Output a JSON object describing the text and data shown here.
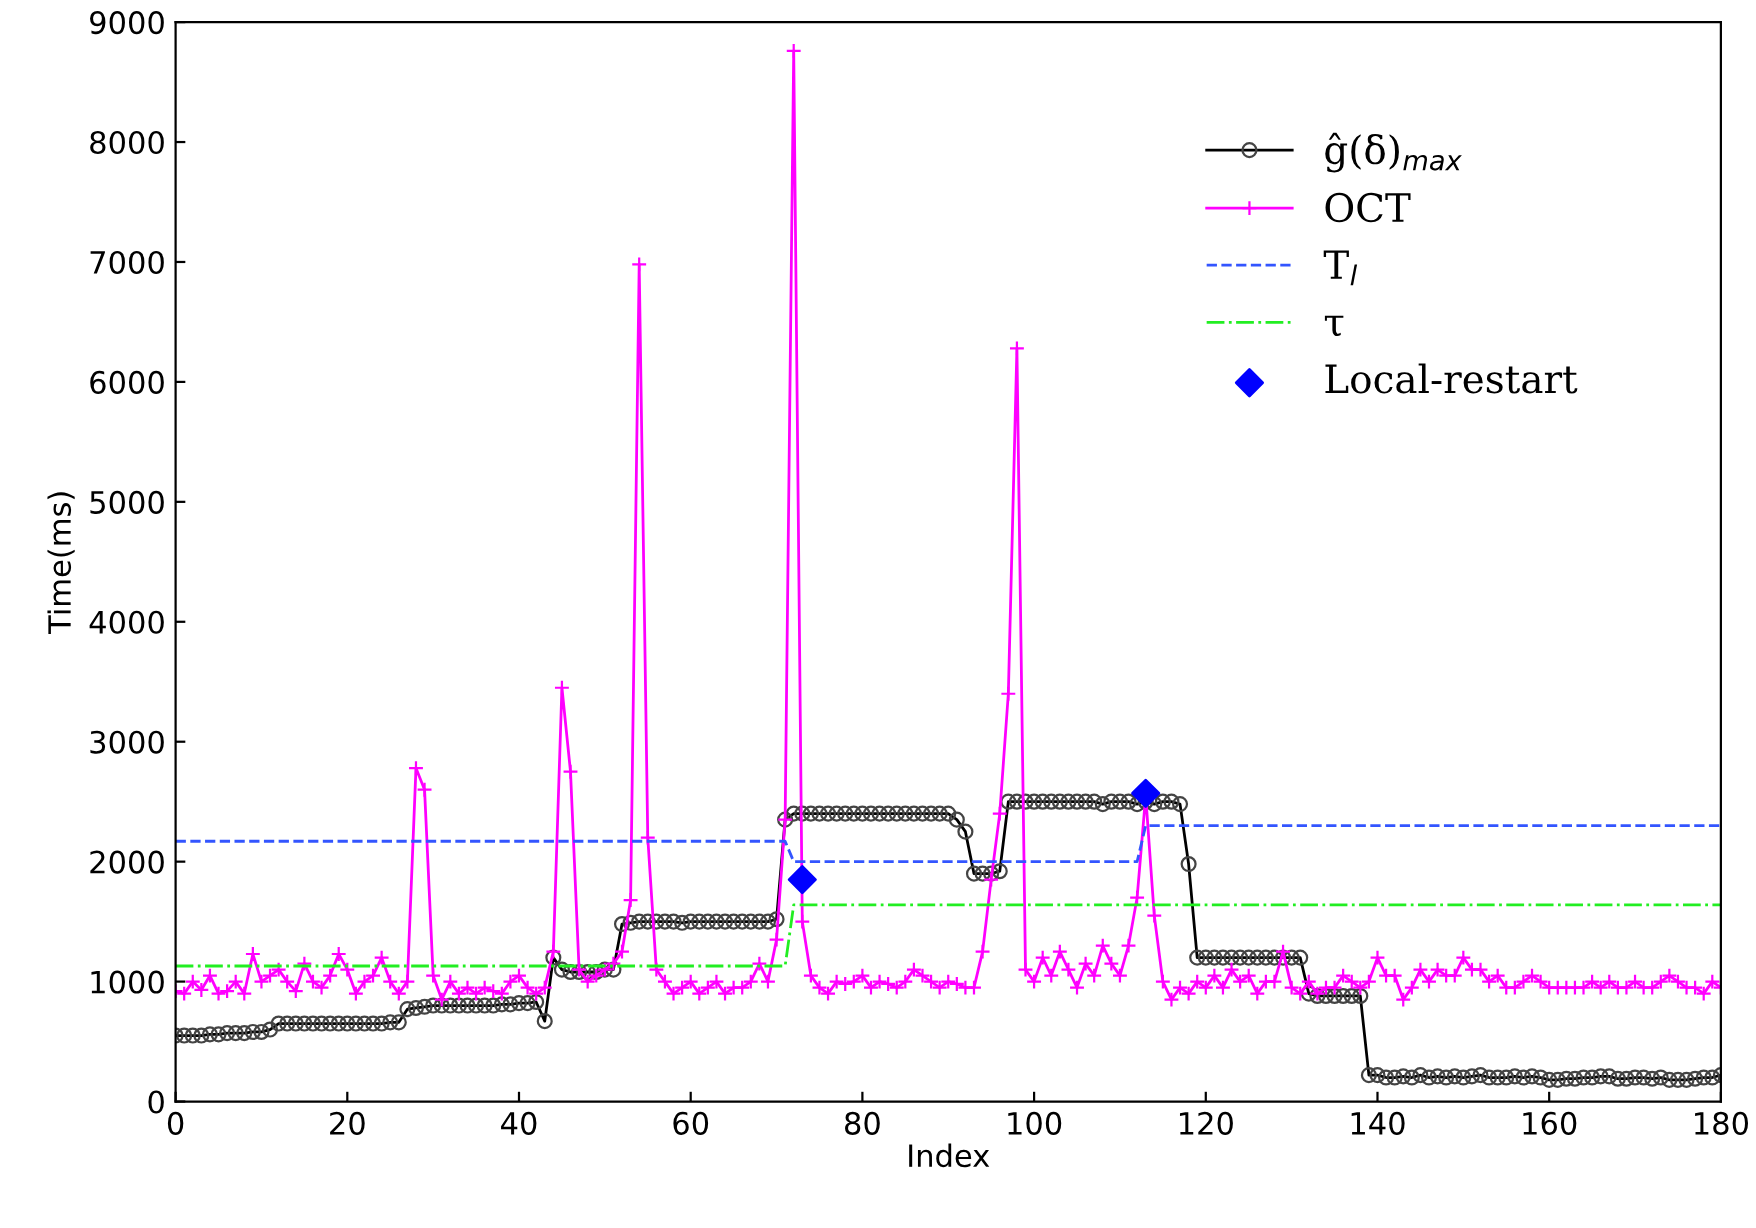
{
  "chart_data": {
    "type": "line",
    "xlabel": "Index",
    "ylabel": "Time(ms)",
    "xlim": [
      0,
      180
    ],
    "xticks": [
      0,
      20,
      40,
      60,
      80,
      100,
      120,
      140,
      160,
      180
    ],
    "ylim": [
      0,
      9000
    ],
    "yticks": [
      0,
      1000,
      2000,
      3000,
      4000,
      5000,
      6000,
      7000,
      8000,
      9000
    ],
    "grid": false,
    "legend": "top right",
    "x": [
      0,
      1,
      2,
      3,
      4,
      5,
      6,
      7,
      8,
      9,
      10,
      11,
      12,
      13,
      14,
      15,
      16,
      17,
      18,
      19,
      20,
      21,
      22,
      23,
      24,
      25,
      26,
      27,
      28,
      29,
      30,
      31,
      32,
      33,
      34,
      35,
      36,
      37,
      38,
      39,
      40,
      41,
      42,
      43,
      44,
      45,
      46,
      47,
      48,
      49,
      50,
      51,
      52,
      53,
      54,
      55,
      56,
      57,
      58,
      59,
      60,
      61,
      62,
      63,
      64,
      65,
      66,
      67,
      68,
      69,
      70,
      71,
      72,
      73,
      74,
      75,
      76,
      77,
      78,
      79,
      80,
      81,
      82,
      83,
      84,
      85,
      86,
      87,
      88,
      89,
      90,
      91,
      92,
      93,
      94,
      95,
      96,
      97,
      98,
      99,
      100,
      101,
      102,
      103,
      104,
      105,
      106,
      107,
      108,
      109,
      110,
      111,
      112,
      113,
      114,
      115,
      116,
      117,
      118,
      119,
      120,
      121,
      122,
      123,
      124,
      125,
      126,
      127,
      128,
      129,
      130,
      131,
      132,
      133,
      134,
      135,
      136,
      137,
      138,
      139,
      140,
      141,
      142,
      143,
      144,
      145,
      146,
      147,
      148,
      149,
      150,
      151,
      152,
      153,
      154,
      155,
      156,
      157,
      158,
      159,
      160,
      161,
      162,
      163,
      164,
      165,
      166,
      167,
      168,
      169,
      170,
      171,
      172,
      173,
      174,
      175,
      176,
      177,
      178,
      179,
      180
    ],
    "series": [
      {
        "name": "ĝ(δ)$_{max}$",
        "color": "#000000",
        "marker": "circle",
        "line_style": "solid",
        "values": [
          550,
          550,
          550,
          550,
          560,
          560,
          570,
          570,
          570,
          580,
          580,
          600,
          650,
          650,
          650,
          650,
          650,
          650,
          650,
          650,
          650,
          650,
          650,
          650,
          650,
          660,
          660,
          770,
          780,
          790,
          800,
          800,
          800,
          800,
          800,
          800,
          800,
          800,
          810,
          810,
          820,
          820,
          830,
          670,
          1200,
          1100,
          1080,
          1080,
          1080,
          1080,
          1100,
          1100,
          1480,
          1490,
          1500,
          1500,
          1500,
          1500,
          1500,
          1490,
          1500,
          1500,
          1500,
          1500,
          1500,
          1500,
          1500,
          1500,
          1500,
          1500,
          1520,
          2350,
          2400,
          2400,
          2400,
          2400,
          2400,
          2400,
          2400,
          2400,
          2400,
          2400,
          2400,
          2400,
          2400,
          2400,
          2400,
          2400,
          2400,
          2400,
          2400,
          2350,
          2250,
          1900,
          1900,
          1900,
          1920,
          2500,
          2500,
          2500,
          2500,
          2500,
          2500,
          2500,
          2500,
          2500,
          2500,
          2500,
          2480,
          2500,
          2500,
          2500,
          2480,
          2500,
          2480,
          2500,
          2500,
          2480,
          1980,
          1200,
          1200,
          1200,
          1200,
          1200,
          1200,
          1200,
          1200,
          1200,
          1200,
          1200,
          1200,
          1200,
          900,
          880,
          880,
          880,
          880,
          880,
          880,
          220,
          220,
          200,
          200,
          210,
          200,
          220,
          200,
          210,
          200,
          210,
          200,
          210,
          220,
          200,
          200,
          200,
          210,
          200,
          210,
          200,
          180,
          180,
          190,
          190,
          200,
          200,
          210,
          210,
          190,
          190,
          200,
          200,
          190,
          200,
          180,
          180,
          180,
          190,
          200,
          200,
          220
        ]
      },
      {
        "name": "OCT",
        "color": "#ff00ff",
        "marker": "cross",
        "line_style": "solid",
        "values": [
          920,
          900,
          1000,
          930,
          1050,
          900,
          920,
          1000,
          900,
          1230,
          1000,
          1050,
          1100,
          1000,
          920,
          1150,
          1000,
          950,
          1050,
          1230,
          1100,
          900,
          1000,
          1050,
          1200,
          1000,
          900,
          1000,
          2780,
          2600,
          1050,
          850,
          1000,
          900,
          950,
          900,
          950,
          920,
          900,
          1000,
          1050,
          950,
          900,
          950,
          1250,
          3450,
          2750,
          1100,
          1000,
          1050,
          1100,
          1150,
          1250,
          1680,
          6980,
          2200,
          1100,
          1000,
          900,
          950,
          1000,
          900,
          950,
          1000,
          900,
          950,
          950,
          1000,
          1150,
          1000,
          1350,
          2350,
          8760,
          1500,
          1050,
          950,
          900,
          1000,
          980,
          1000,
          1050,
          950,
          1000,
          980,
          950,
          1000,
          1100,
          1050,
          1000,
          950,
          1000,
          980,
          950,
          950,
          1250,
          1850,
          2400,
          3400,
          6280,
          1100,
          1000,
          1200,
          1050,
          1250,
          1100,
          950,
          1150,
          1050,
          1300,
          1150,
          1050,
          1300,
          1700,
          2550,
          1550,
          1000,
          850,
          950,
          900,
          1000,
          950,
          1050,
          950,
          1100,
          1000,
          1050,
          900,
          1000,
          1000,
          1250,
          950,
          900,
          1000,
          900,
          950,
          950,
          1050,
          1000,
          950,
          1000,
          1200,
          1050,
          1050,
          850,
          950,
          1100,
          1000,
          1100,
          1050,
          1050,
          1200,
          1100,
          1100,
          1000,
          1050,
          950,
          950,
          1000,
          1050,
          1000,
          950,
          950,
          950,
          950,
          950,
          1000,
          950,
          1000,
          950,
          950,
          1000,
          950,
          950,
          1000,
          1050,
          1000,
          950,
          950,
          900,
          1000,
          950
        ]
      },
      {
        "name": "T$_{l}$",
        "color": "#3355ff",
        "marker": "none",
        "line_style": "dashed",
        "x": [
          0,
          71,
          72,
          112,
          113,
          180
        ],
        "values": [
          2170,
          2170,
          2000,
          2000,
          2300,
          2300
        ]
      },
      {
        "name": "τ",
        "color": "#22ee22",
        "marker": "none",
        "line_style": "dashdot",
        "x": [
          0,
          71,
          72,
          180
        ],
        "values": [
          1130,
          1130,
          1640,
          1640
        ]
      },
      {
        "name": "Local-restart",
        "type": "scatter",
        "color": "#0000ff",
        "marker": "diamond",
        "x": [
          73,
          113
        ],
        "values": [
          1850,
          2570
        ]
      }
    ]
  }
}
